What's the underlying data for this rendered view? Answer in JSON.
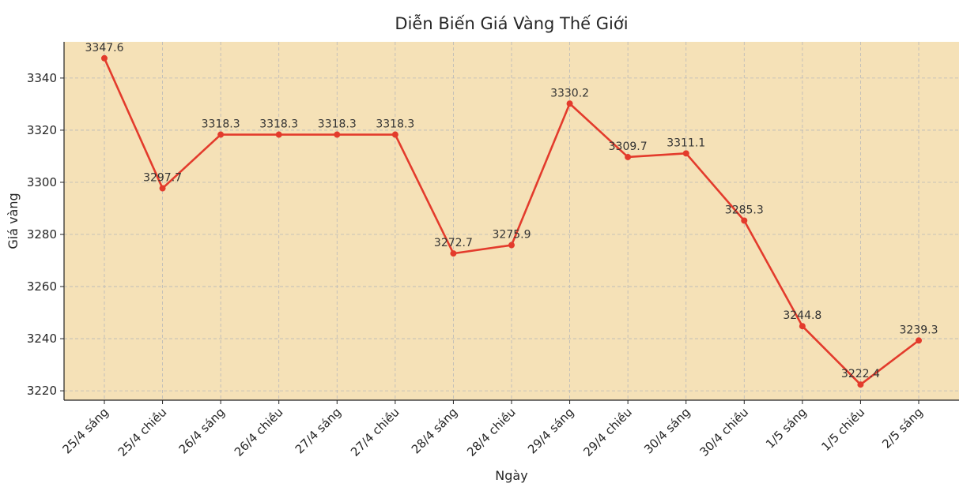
{
  "chart_data": {
    "type": "line",
    "title": "Diễn Biến Giá Vàng Thế Giới",
    "x_label": "Ngày",
    "y_label": "Giá vàng",
    "categories": [
      "25/4 sáng",
      "25/4 chiều",
      "26/4 sáng",
      "26/4 chiều",
      "27/4 sáng",
      "27/4 chiều",
      "28/4 sáng",
      "28/4 chiều",
      "29/4 sáng",
      "29/4 chiều",
      "30/4 sáng",
      "30/4 chiều",
      "1/5 sáng",
      "1/5 chiều",
      "2/5 sáng"
    ],
    "values": [
      3347.6,
      3297.7,
      3318.3,
      3318.3,
      3318.3,
      3318.3,
      3272.7,
      3275.9,
      3330.2,
      3309.7,
      3311.1,
      3285.3,
      3244.8,
      3222.4,
      3239.3
    ],
    "color": "#e33b2c",
    "ylim": [
      3216.4,
      3353.9
    ],
    "yticks": [
      3220,
      3240,
      3260,
      3280,
      3300,
      3320,
      3340
    ],
    "grid": true
  }
}
